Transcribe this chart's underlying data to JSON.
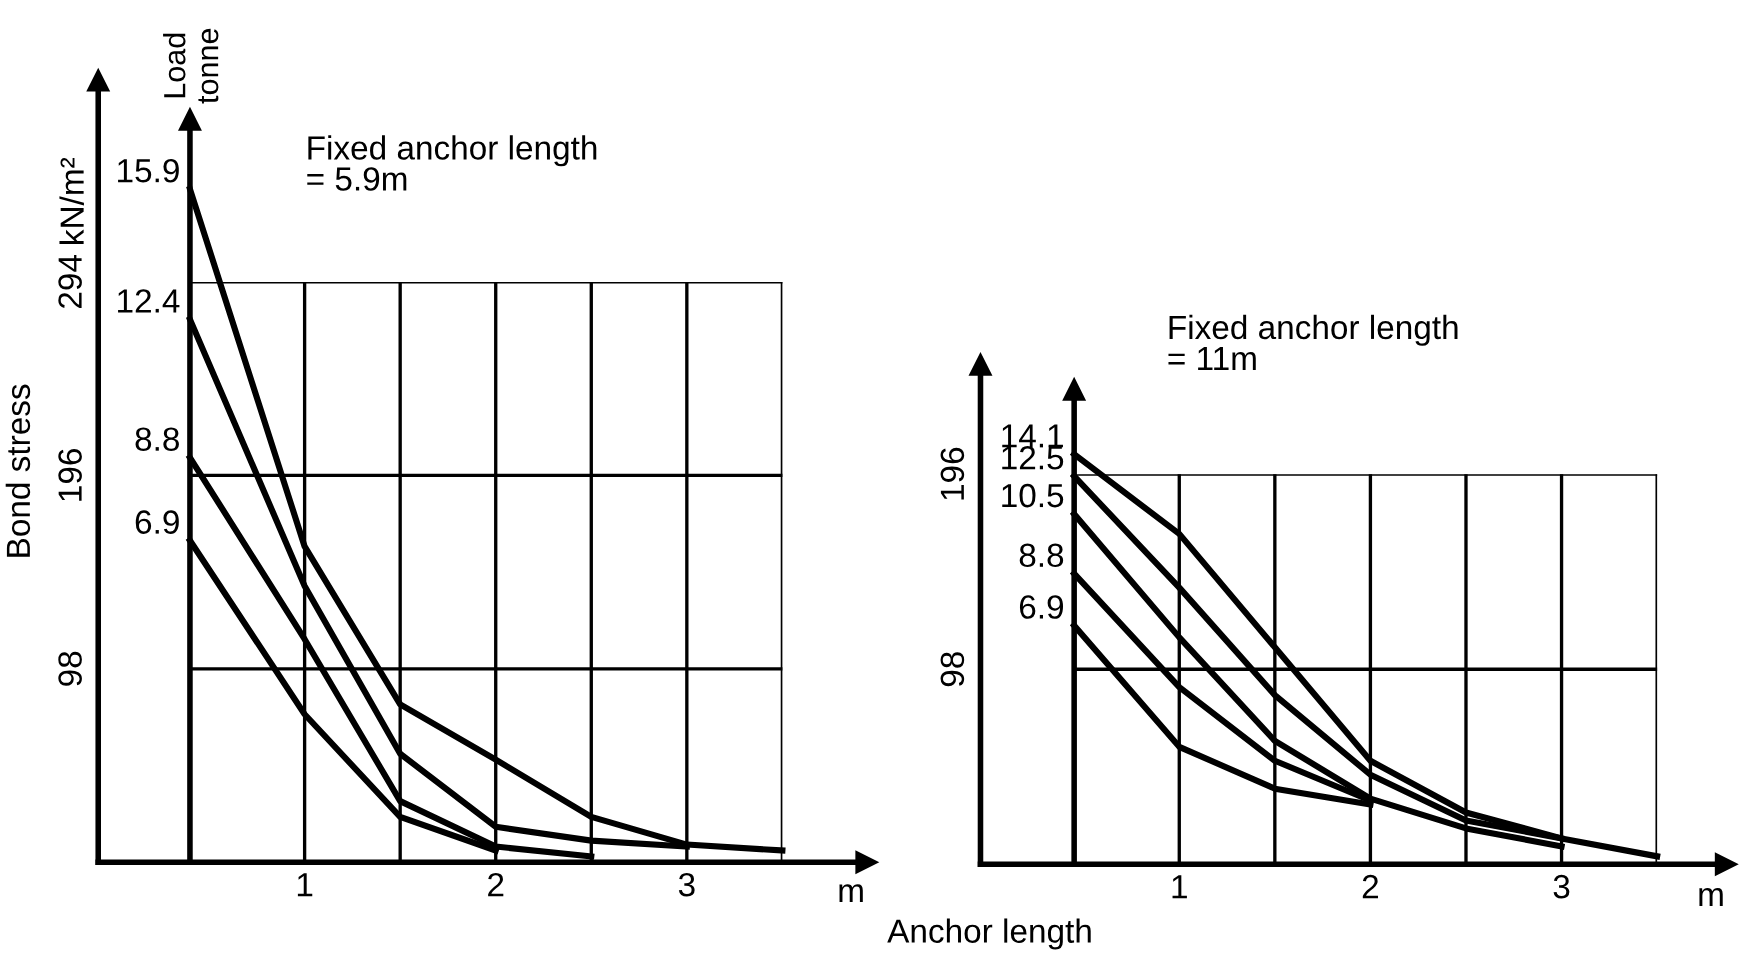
{
  "chart_data": [
    {
      "type": "line",
      "title": "Fixed anchor length\n= 5.9m",
      "xlabel": "m",
      "ylabel": "Bond stress",
      "annotations": [
        "kN/m²",
        "Anchor length"
      ],
      "xlim": [
        -0.08,
        3.94
      ],
      "ylim": [
        0,
        396
      ],
      "xticks": [
        {
          "value": 0.4,
          "label": null
        },
        1,
        {
          "value": 1.5,
          "label": null
        },
        2,
        {
          "value": 2.5,
          "label": null
        },
        3,
        {
          "value": 3.5,
          "label": null
        }
      ],
      "yticks": [
        98,
        196,
        294
      ],
      "grid": true,
      "marker": "none",
      "line_style": "solid",
      "ref_lines": [
        {
          "axis": "x",
          "value": 0.4,
          "label": "Load\ntonne",
          "color": "#000000"
        }
      ],
      "series": [
        {
          "name": "15.9",
          "color": "#000000",
          "x": [
            0.4,
            1,
            1.5,
            2,
            2.5,
            3,
            3.5
          ],
          "values": [
            341,
            160,
            80,
            52,
            23,
            9,
            6
          ]
        },
        {
          "name": "12.4",
          "color": "#000000",
          "x": [
            0.4,
            1,
            1.5,
            2,
            2.5,
            3
          ],
          "values": [
            275,
            140,
            55,
            18,
            11,
            8
          ]
        },
        {
          "name": "8.8",
          "color": "#000000",
          "x": [
            0.4,
            1,
            1.5,
            2,
            2.5
          ],
          "values": [
            205,
            113,
            31,
            8,
            3
          ]
        },
        {
          "name": "6.9",
          "color": "#000000",
          "x": [
            0.4,
            1,
            1.5,
            2
          ],
          "values": [
            163,
            75,
            23,
            6
          ]
        }
      ]
    },
    {
      "type": "line",
      "title": "Fixed anchor length\n= 11m",
      "xlabel": "m",
      "xlim": [
        -0.04,
        3.86
      ],
      "ylim": [
        0,
        251
      ],
      "xticks": [
        {
          "value": 0.45,
          "label": null
        },
        1,
        {
          "value": 1.5,
          "label": null
        },
        2,
        {
          "value": 2.5,
          "label": null
        },
        3,
        {
          "value": 3.5,
          "label": null
        }
      ],
      "yticks": [
        98,
        196
      ],
      "grid": true,
      "marker": "none",
      "line_style": "solid",
      "ref_lines": [
        {
          "axis": "x",
          "value": 0.45,
          "label": null,
          "color": "#000000"
        }
      ],
      "series": [
        {
          "name": "14.1",
          "color": "#000000",
          "x": [
            0.45,
            1,
            1.5,
            2,
            2.5,
            3,
            3.5
          ],
          "values": [
            206,
            166,
            109,
            52,
            26,
            13,
            4
          ]
        },
        {
          "name": "12.5",
          "color": "#000000",
          "x": [
            0.45,
            1,
            1.5,
            2,
            2.5,
            3
          ],
          "values": [
            195,
            139,
            85,
            45,
            22,
            13
          ]
        },
        {
          "name": "10.5",
          "color": "#000000",
          "x": [
            0.45,
            1,
            1.5,
            2,
            2.5,
            3
          ],
          "values": [
            176,
            114,
            62,
            33,
            18,
            9
          ]
        },
        {
          "name": "8.8",
          "color": "#000000",
          "x": [
            0.45,
            1,
            1.5,
            2
          ],
          "values": [
            146,
            89,
            52,
            32
          ]
        },
        {
          "name": "6.9",
          "color": "#000000",
          "x": [
            0.45,
            1,
            1.5,
            2
          ],
          "values": [
            120,
            59,
            38,
            30
          ]
        }
      ]
    }
  ]
}
